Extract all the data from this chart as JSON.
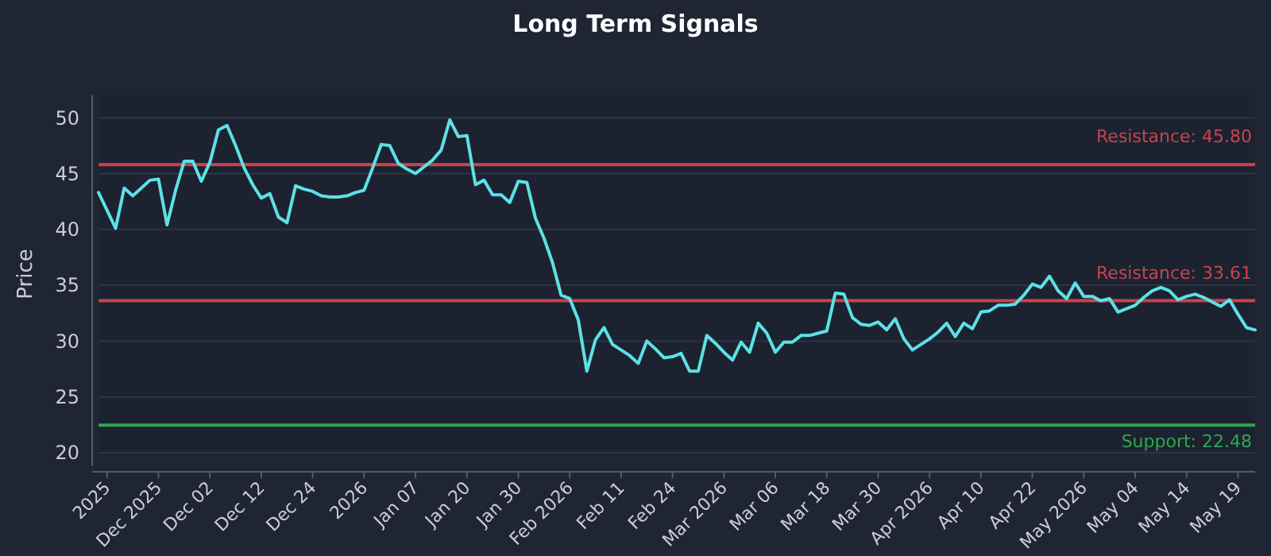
{
  "chart_data": {
    "type": "line",
    "title": "Long Term Signals",
    "ylabel": "Price",
    "categories": [
      null,
      "2025",
      null,
      null,
      null,
      null,
      null,
      "Dec 2025",
      null,
      null,
      null,
      null,
      null,
      "Dec 02",
      null,
      null,
      null,
      null,
      null,
      "Dec 12",
      null,
      null,
      null,
      null,
      null,
      "Dec 24",
      null,
      null,
      null,
      null,
      null,
      "2026",
      null,
      null,
      null,
      null,
      null,
      "Jan 07",
      null,
      null,
      null,
      null,
      null,
      "Jan 20",
      null,
      null,
      null,
      null,
      null,
      "Jan 30",
      null,
      null,
      null,
      null,
      null,
      "Feb 2026",
      null,
      null,
      null,
      null,
      null,
      "Feb 11",
      null,
      null,
      null,
      null,
      null,
      "Feb 24",
      null,
      null,
      null,
      null,
      null,
      "Mar 2026",
      null,
      null,
      null,
      null,
      null,
      "Mar 06",
      null,
      null,
      null,
      null,
      null,
      "Mar 18",
      null,
      null,
      null,
      null,
      null,
      "Mar 30",
      null,
      null,
      null,
      null,
      null,
      "Apr 2026",
      null,
      null,
      null,
      null,
      null,
      "Apr 10",
      null,
      null,
      null,
      null,
      null,
      "Apr 22",
      null,
      null,
      null,
      null,
      null,
      "May 2026",
      null,
      null,
      null,
      null,
      null,
      "May 04",
      null,
      null,
      null,
      null,
      null,
      "May 14",
      null,
      null,
      null,
      null,
      null,
      "May 19",
      null,
      null
    ],
    "series": [
      {
        "color": "#5ce1e6",
        "values": [
          43.3,
          41.7,
          40.1,
          43.7,
          43.0,
          43.7,
          44.4,
          44.5,
          40.4,
          43.5,
          46.1,
          46.1,
          44.3,
          46.0,
          48.9,
          49.3,
          47.5,
          45.5,
          44.0,
          42.8,
          43.2,
          41.1,
          40.6,
          43.9,
          43.6,
          43.4,
          43.0,
          42.9,
          42.9,
          43.0,
          43.3,
          43.5,
          45.5,
          47.6,
          47.5,
          45.9,
          45.4,
          45.0,
          45.6,
          46.2,
          47.1,
          49.8,
          48.3,
          48.4,
          44.0,
          44.4,
          43.1,
          43.1,
          42.4,
          44.3,
          44.2,
          41.0,
          39.2,
          37.0,
          34.1,
          33.8,
          31.9,
          27.3,
          30.1,
          31.2,
          29.7,
          29.2,
          28.7,
          28.0,
          30.0,
          29.3,
          28.5,
          28.6,
          28.9,
          27.3,
          27.3,
          30.5,
          29.8,
          29.0,
          28.3,
          29.9,
          29.0,
          31.6,
          30.7,
          29.0,
          29.9,
          29.9,
          30.5,
          30.5,
          30.7,
          30.9,
          34.3,
          34.2,
          32.1,
          31.5,
          31.4,
          31.7,
          31.0,
          32.0,
          30.2,
          29.2,
          29.7,
          30.2,
          30.8,
          31.6,
          30.4,
          31.6,
          31.1,
          32.6,
          32.7,
          33.2,
          33.2,
          33.3,
          34.1,
          35.1,
          34.8,
          35.8,
          34.5,
          33.8,
          35.2,
          34.0,
          34.0,
          33.6,
          33.8,
          32.6,
          32.9,
          33.2,
          33.9,
          34.5,
          34.8,
          34.5,
          33.7,
          34.0,
          34.2,
          33.9,
          33.5,
          33.1,
          33.7,
          32.4,
          31.2,
          31.0
        ]
      }
    ],
    "ylim": [
      20,
      52
    ],
    "yticks": [
      20,
      25,
      30,
      35,
      40,
      45,
      50
    ],
    "grid": "y",
    "marker": "none",
    "line_style": "solid",
    "ref_lines": [
      {
        "axis": "y",
        "value": 45.8,
        "label": "Resistance: 45.80",
        "color": "#c8434f"
      },
      {
        "axis": "y",
        "value": 33.61,
        "label": "Resistance: 33.61",
        "color": "#c8434f"
      },
      {
        "axis": "y",
        "value": 22.48,
        "label": "Support: 22.48",
        "color": "#2ea84f"
      }
    ]
  }
}
